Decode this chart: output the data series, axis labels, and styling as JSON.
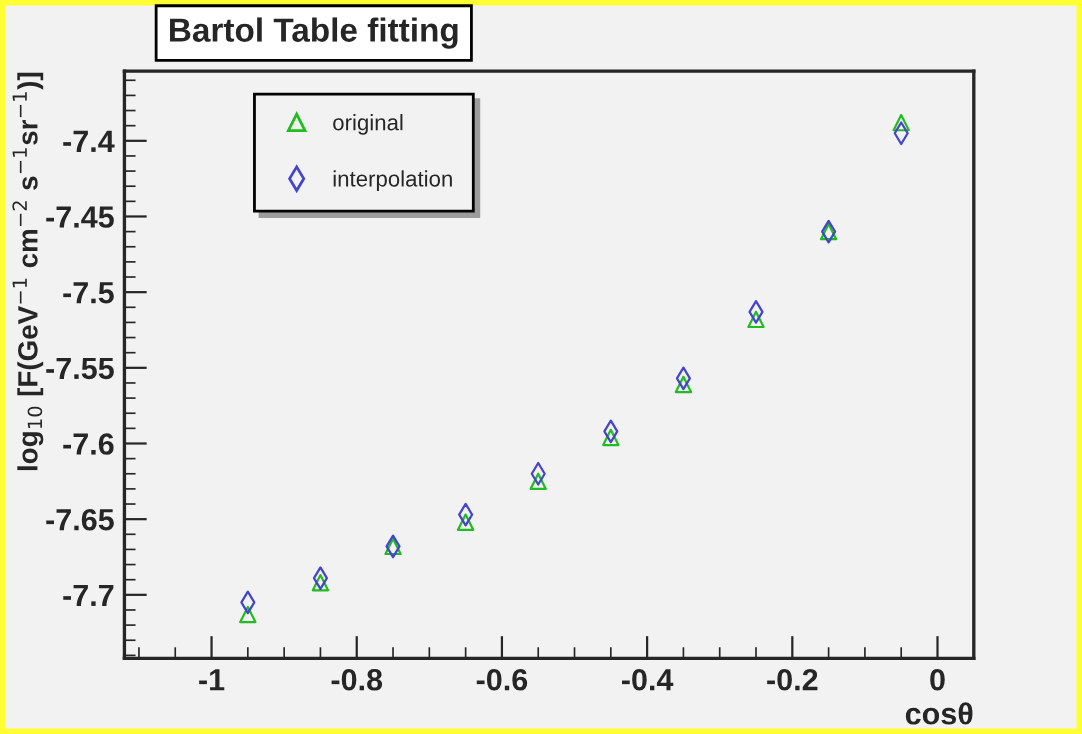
{
  "chart_data": {
    "type": "scatter",
    "title": "Bartol Table fitting",
    "xlabel": "cosθ",
    "ylabel": "log$_{10}$ [F(GeV$^{−1}$ cm$^{−2}$ s$^{−1}$sr$^{−1}$)]",
    "x": [
      -0.95,
      -0.85,
      -0.75,
      -0.65,
      -0.55,
      -0.45,
      -0.35,
      -0.25,
      -0.15,
      -0.05
    ],
    "series": [
      {
        "name": "original",
        "color": "#22bb22",
        "marker": "triangle",
        "values": [
          -7.713,
          -7.692,
          -7.668,
          -7.652,
          -7.625,
          -7.596,
          -7.561,
          -7.518,
          -7.46,
          -7.388
        ]
      },
      {
        "name": "interpolation",
        "color": "#4444cc",
        "marker": "diamond",
        "values": [
          -7.705,
          -7.689,
          -7.668,
          -7.647,
          -7.62,
          -7.592,
          -7.557,
          -7.513,
          -7.46,
          -7.395
        ]
      }
    ],
    "xlim": [
      -1.12,
      0.05
    ],
    "xticks": [
      -1,
      -0.8,
      -0.6,
      -0.4,
      -0.2,
      0
    ],
    "ylim": [
      -7.742,
      -7.354
    ],
    "yticks": [
      -7.7,
      -7.65,
      -7.6,
      -7.55,
      -7.5,
      -7.45,
      -7.4
    ],
    "grid": false,
    "legend": "top left"
  }
}
